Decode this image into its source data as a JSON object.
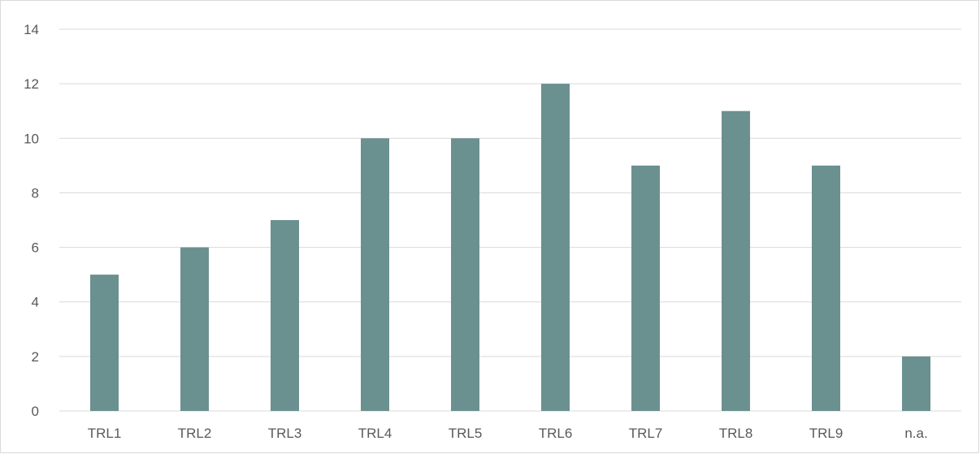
{
  "chart_data": {
    "type": "bar",
    "categories": [
      "TRL1",
      "TRL2",
      "TRL3",
      "TRL4",
      "TRL5",
      "TRL6",
      "TRL7",
      "TRL8",
      "TRL9",
      "n.a."
    ],
    "values": [
      5,
      6,
      7,
      10,
      10,
      12,
      9,
      11,
      9,
      2
    ],
    "title": "",
    "xlabel": "",
    "ylabel": "",
    "ylim": [
      0,
      14
    ],
    "yticks": [
      0,
      2,
      4,
      6,
      8,
      10,
      12,
      14
    ],
    "grid": true,
    "legend": "none",
    "colors": {
      "bar": "#6b9090",
      "grid": "#d9d9d9",
      "text": "#595959"
    }
  }
}
